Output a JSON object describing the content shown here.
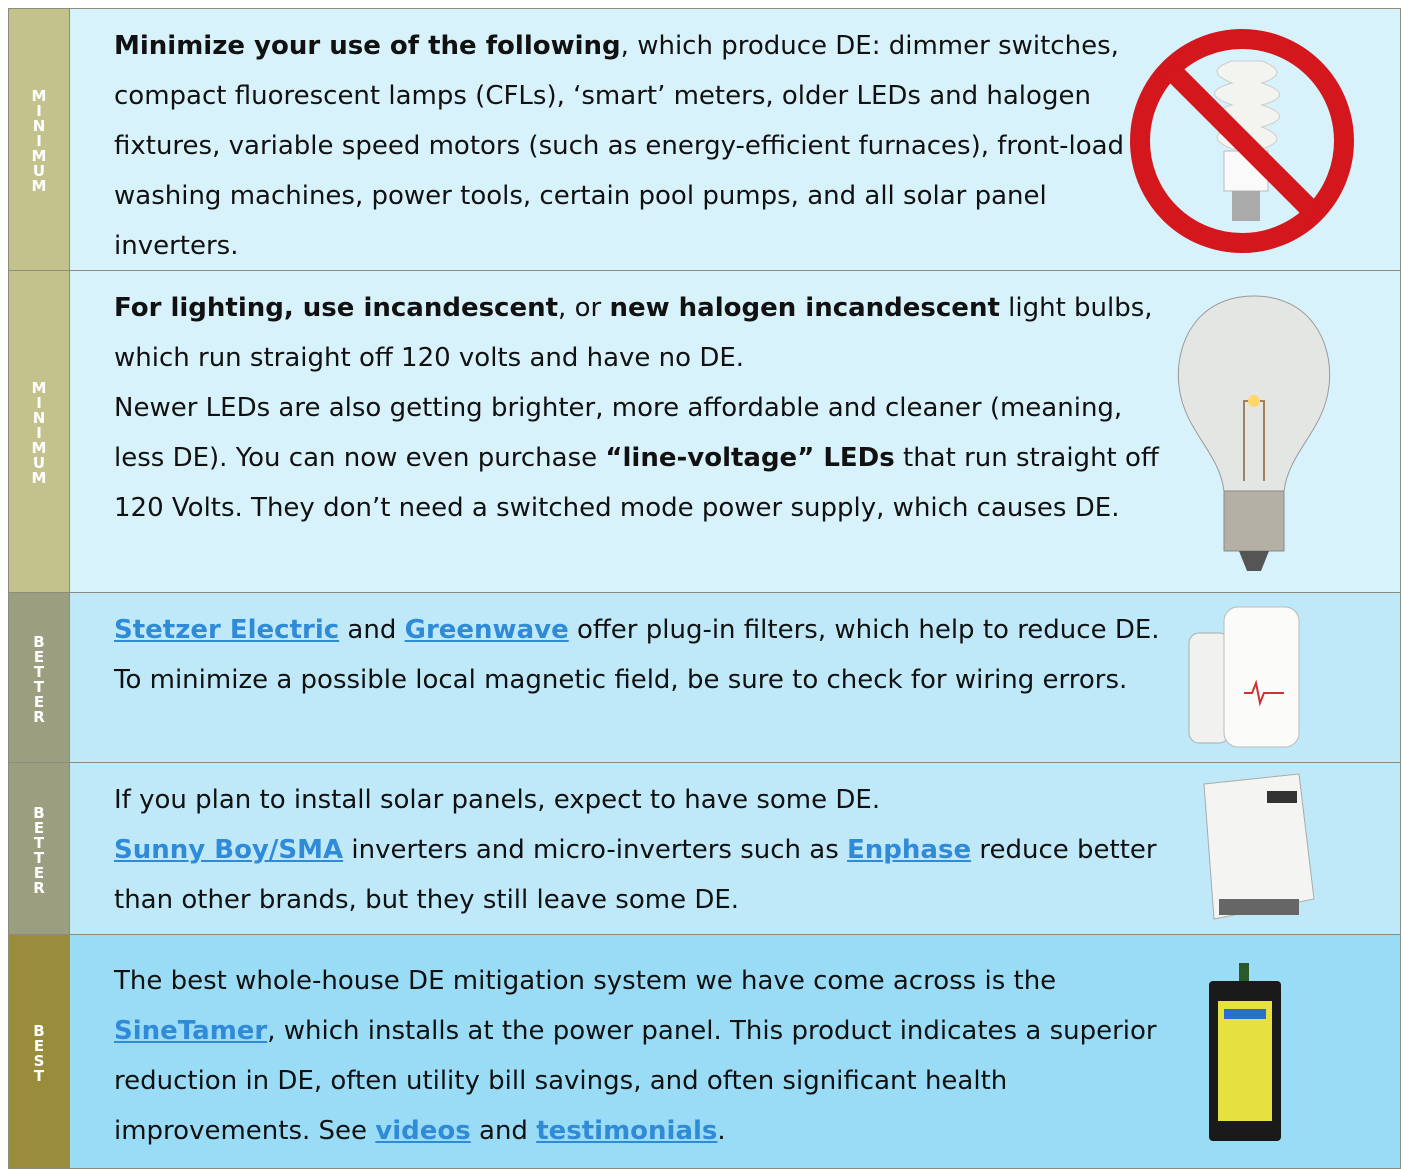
{
  "rows": [
    {
      "label": "MINIMUM",
      "paragraphs": [
        [
          {
            "text": "Minimize your use of the following",
            "bold": true
          },
          {
            "text": ", which produce DE: dimmer switches, compact fluorescent lamps (CFLs), ‘smart’ meters, older LEDs and halogen fixtures, variable speed motors (such as energy-efficient furnaces), front-load washing machines, power tools, certain pool pumps, and all solar panel inverters."
          }
        ]
      ]
    },
    {
      "label": "MINIMUM",
      "paragraphs": [
        [
          {
            "text": "For lighting, use incandescent",
            "bold": true
          },
          {
            "text": ", or "
          },
          {
            "text": "new halogen incandescent",
            "bold": true
          },
          {
            "text": " light bulbs, which run straight off 120 volts and have no DE."
          }
        ],
        [
          {
            "text": "Newer LEDs are also getting brighter, more affordable and cleaner (meaning, less DE). You can now even purchase "
          },
          {
            "text": "“line-voltage” LEDs",
            "bold": true
          },
          {
            "text": " that run straight off 120 Volts. They don’t need a switched mode power supply, which causes DE."
          }
        ]
      ]
    },
    {
      "label": "BETTER",
      "paragraphs": [
        [
          {
            "text": "Stetzer Electric",
            "link": true
          },
          {
            "text": " and "
          },
          {
            "text": "Greenwave",
            "link": true
          },
          {
            "text": " offer plug-in filters, which help to reduce DE. To minimize a possible local magnetic field, be sure to check for wiring errors."
          }
        ]
      ]
    },
    {
      "label": "BETTER",
      "paragraphs": [
        [
          {
            "text": "If you plan to install solar panels, expect to have some DE."
          }
        ],
        [
          {
            "text": "Sunny Boy/SMA",
            "link": true
          },
          {
            "text": " inverters and micro-inverters such as "
          },
          {
            "text": "Enphase",
            "link": true
          },
          {
            "text": " reduce better than other brands, but they still leave some DE."
          }
        ]
      ]
    },
    {
      "label": "BEST",
      "paragraphs": [
        [
          {
            "text": "The best whole-house DE mitigation system we have come across is the "
          },
          {
            "text": "SineTamer",
            "link": true
          },
          {
            "text": ", which installs at the power panel. This product indicates a superior reduction in DE, often utility bill savings, and often significant health improvements. See "
          },
          {
            "text": "videos",
            "link": true
          },
          {
            "text": " and "
          },
          {
            "text": "testimonials",
            "link": true
          },
          {
            "text": "."
          }
        ]
      ]
    }
  ]
}
